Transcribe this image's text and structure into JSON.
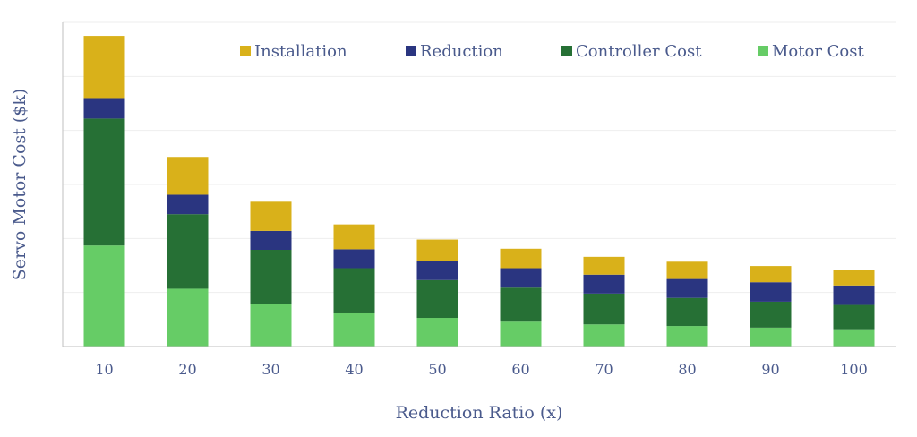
{
  "chart_data": {
    "type": "bar",
    "stacked": true,
    "title": "",
    "xlabel": "Reduction Ratio (x)",
    "ylabel": "Servo Motor Cost ($k)",
    "categories": [
      "10",
      "20",
      "30",
      "40",
      "50",
      "60",
      "70",
      "80",
      "90",
      "100"
    ],
    "ylim": [
      0,
      6
    ],
    "grid": true,
    "legend_position": "top",
    "series": [
      {
        "name": "Motor Cost",
        "color": "#66cc66",
        "values": [
          1.87,
          1.07,
          0.78,
          0.63,
          0.53,
          0.46,
          0.41,
          0.38,
          0.35,
          0.32
        ]
      },
      {
        "name": "Controller Cost",
        "color": "#267035",
        "values": [
          2.35,
          1.38,
          1.01,
          0.82,
          0.7,
          0.63,
          0.57,
          0.52,
          0.48,
          0.45
        ]
      },
      {
        "name": "Reduction",
        "color": "#2a3580",
        "values": [
          0.38,
          0.36,
          0.35,
          0.35,
          0.35,
          0.36,
          0.35,
          0.35,
          0.36,
          0.36
        ]
      },
      {
        "name": "Installation",
        "color": "#d9b11a",
        "values": [
          1.15,
          0.7,
          0.54,
          0.46,
          0.4,
          0.36,
          0.33,
          0.32,
          0.3,
          0.29
        ]
      }
    ],
    "legend_order": [
      "Installation",
      "Reduction",
      "Controller Cost",
      "Motor Cost"
    ]
  }
}
